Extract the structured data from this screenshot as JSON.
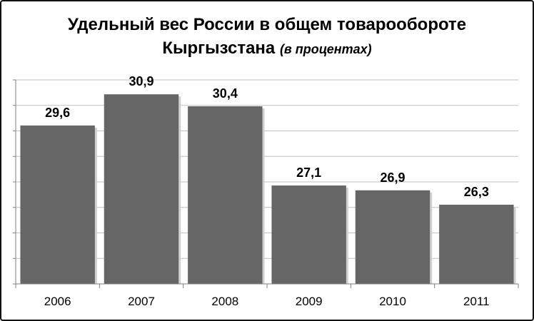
{
  "chart_data": {
    "type": "bar",
    "title_line1": "Удельный вес России в общем товарообороте",
    "title_line2": "Кыргызстана",
    "title_unit": "(в процентах)",
    "xlabel": "",
    "ylabel": "",
    "categories": [
      "2006",
      "2007",
      "2008",
      "2009",
      "2010",
      "2011"
    ],
    "values": [
      29.6,
      30.9,
      30.4,
      27.1,
      26.9,
      26.3
    ],
    "value_labels": [
      "29,6",
      "30,9",
      "30,4",
      "27,1",
      "26,9",
      "26,3"
    ],
    "ylim": [
      23,
      31.5
    ],
    "grid": true,
    "legend": "none",
    "colors": {
      "bar": "#666666",
      "grid": "#bfbfbf",
      "axis": "#808080",
      "text": "#000000"
    }
  }
}
